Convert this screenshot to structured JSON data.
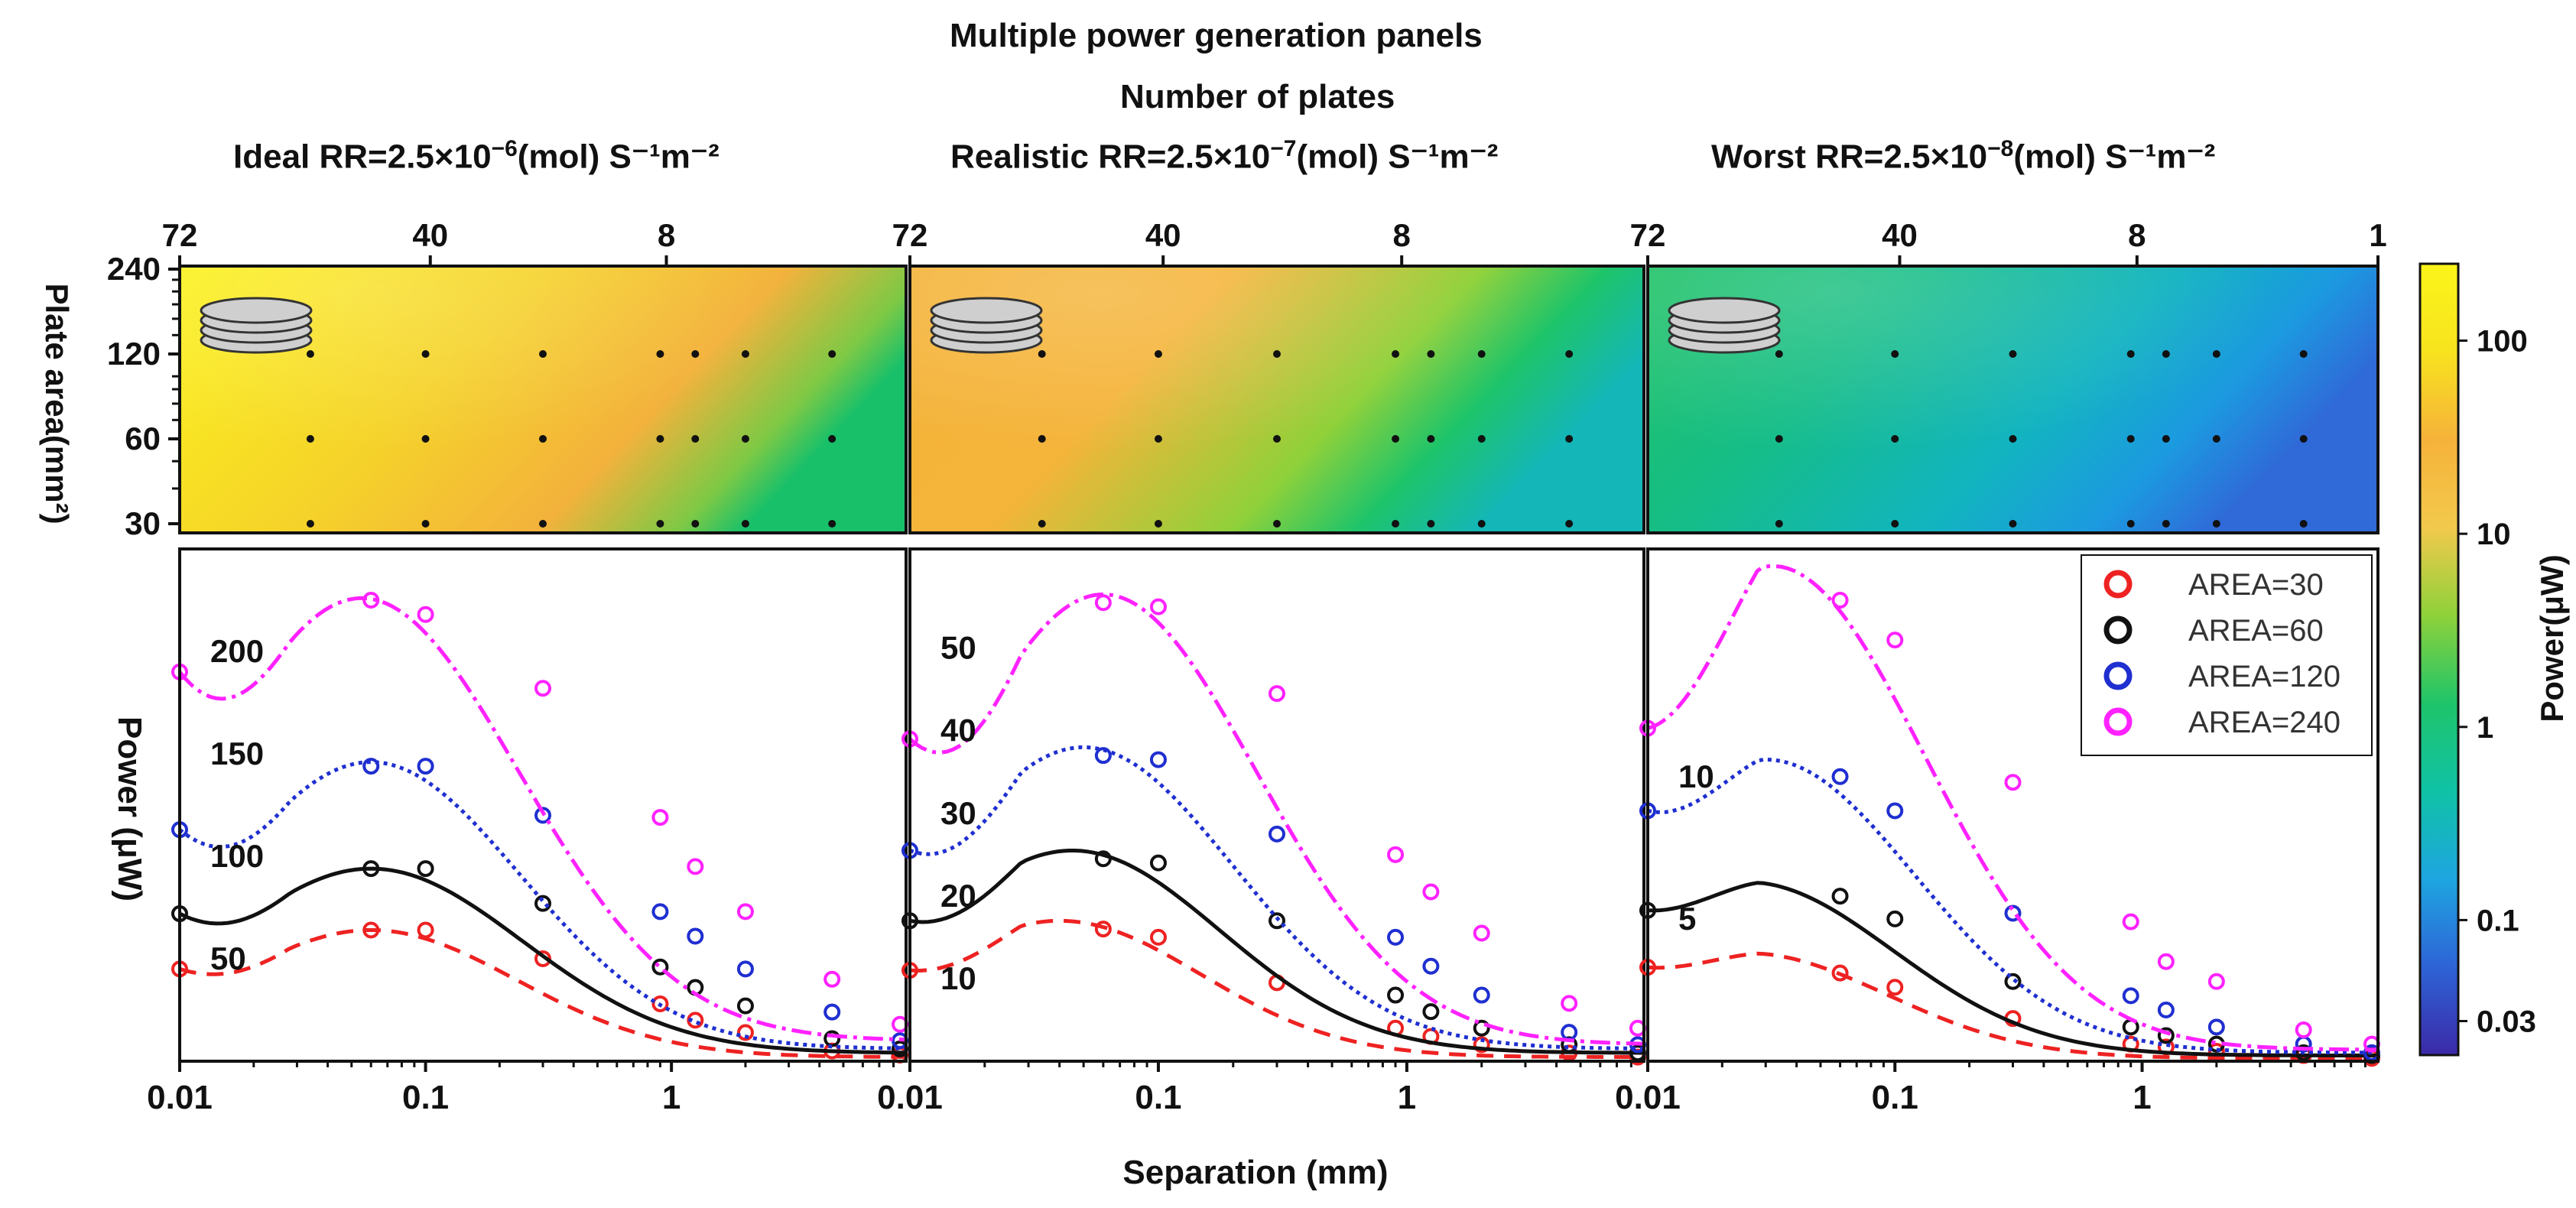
{
  "figure": {
    "title": "Multiple power generation panels",
    "top_axis_label": "Number of plates",
    "panel_titles": [
      {
        "prefix": "Ideal RR=2.5×10",
        "exponent": "−6",
        "suffix": "(mol) S⁻¹m⁻²"
      },
      {
        "prefix": "Realistic RR=2.5×10",
        "exponent": "−7",
        "suffix": "(mol) S⁻¹m⁻²"
      },
      {
        "prefix": "Worst RR=2.5×10",
        "exponent": "−8",
        "suffix": "(mol) S⁻¹m⁻²"
      }
    ],
    "colorbar": {
      "label": "Power(μW)",
      "scale": "log",
      "range": [
        0.02,
        250
      ],
      "ticks": [
        "100",
        "10",
        "1",
        "0.1",
        "0.03"
      ],
      "tick_values": [
        100,
        10,
        1,
        0.1,
        0.03
      ],
      "colors": [
        "#3b2aa8",
        "#2e63d6",
        "#1ea5e0",
        "#10c2a6",
        "#1ec46a",
        "#8fd13a",
        "#f2c94c",
        "#f6b23a",
        "#f7e31f",
        "#fbf519"
      ]
    }
  },
  "chart_data": [
    {
      "type": "heatmap",
      "name": "Ideal contour",
      "ylabel": "Plate area(mm²)",
      "yticks": [
        "240",
        "120",
        "60",
        "30"
      ],
      "ytick_values": [
        240,
        120,
        60,
        30
      ],
      "top_ticks": [
        "72",
        "40",
        "8"
      ],
      "top_tick_values": [
        72,
        40,
        8
      ],
      "color_stops": [
        [
          0.0,
          "#fcf21c"
        ],
        [
          0.45,
          "#f5d22a"
        ],
        [
          0.75,
          "#f3b23c"
        ],
        [
          0.92,
          "#7dc945"
        ],
        [
          1.0,
          "#18c06a"
        ]
      ],
      "points_area": [
        30,
        60,
        120
      ],
      "points_sep": [
        0.034,
        0.1,
        0.3,
        0.9,
        1.25,
        2.0,
        4.5
      ]
    },
    {
      "type": "heatmap",
      "name": "Realistic contour",
      "ylabel": "",
      "yticks": [],
      "top_ticks": [
        "72",
        "40",
        "8"
      ],
      "top_tick_values": [
        72,
        40,
        8
      ],
      "color_stops": [
        [
          0.0,
          "#f4b338"
        ],
        [
          0.4,
          "#f5b43a"
        ],
        [
          0.7,
          "#8fd13a"
        ],
        [
          0.85,
          "#1ec46a"
        ],
        [
          1.0,
          "#14b6b8"
        ]
      ],
      "points_area": [
        30,
        60,
        120
      ],
      "points_sep": [
        0.034,
        0.1,
        0.3,
        0.9,
        1.25,
        2.0,
        4.5
      ]
    },
    {
      "type": "heatmap",
      "name": "Worst contour",
      "ylabel": "",
      "yticks": [],
      "top_ticks": [
        "72",
        "40",
        "8",
        "1"
      ],
      "top_tick_values": [
        72,
        40,
        8,
        1
      ],
      "color_stops": [
        [
          0.0,
          "#20c266"
        ],
        [
          0.35,
          "#15bd88"
        ],
        [
          0.65,
          "#12b4c0"
        ],
        [
          0.85,
          "#1c9ae0"
        ],
        [
          1.0,
          "#2f6ad8"
        ]
      ],
      "points_area": [
        30,
        60,
        120
      ],
      "points_sep": [
        0.034,
        0.1,
        0.3,
        0.9,
        1.25,
        2.0,
        4.5
      ]
    },
    {
      "type": "line",
      "name": "Ideal",
      "xlabel": "Separation (mm)",
      "ylabel": "Power (μW)",
      "xscale": "log",
      "xlim": [
        0.01,
        9
      ],
      "ylim": [
        0,
        250
      ],
      "yticks": [
        "50",
        "100",
        "150",
        "200"
      ],
      "ytick_values": [
        50,
        100,
        150,
        200
      ],
      "xticks": [
        "0.01",
        "0.1",
        "1"
      ],
      "xtick_values": [
        0.01,
        0.1,
        1
      ],
      "x": [
        0.06,
        0.1,
        0.3,
        0.9,
        1.25,
        2.0,
        4.5,
        8.5
      ],
      "series": [
        {
          "name": "AREA=30",
          "color": "#ee2222",
          "dash": "22,14",
          "peak": 64,
          "peak_x": 0.06,
          "sigma": 1.25,
          "floor": 2,
          "start": 45,
          "markers": [
            64,
            64,
            50,
            28,
            20,
            14,
            5,
            3
          ]
        },
        {
          "name": "AREA=60",
          "color": "#111111",
          "dash": "",
          "peak": 94,
          "peak_x": 0.06,
          "sigma": 1.3,
          "floor": 4,
          "start": 72,
          "markers": [
            94,
            94,
            77,
            46,
            36,
            27,
            11,
            6
          ]
        },
        {
          "name": "AREA=120",
          "color": "#1f2fd0",
          "dash": "5,6",
          "peak": 146,
          "peak_x": 0.06,
          "sigma": 1.28,
          "floor": 6,
          "start": 113,
          "markers": [
            144,
            144,
            120,
            73,
            61,
            45,
            24,
            10
          ]
        },
        {
          "name": "AREA=240",
          "color": "#ff22ff",
          "dash": "26,8,5,8",
          "peak": 226,
          "peak_x": 0.055,
          "sigma": 1.35,
          "floor": 10,
          "start": 190,
          "markers": [
            225,
            218,
            182,
            119,
            95,
            73,
            40,
            18
          ]
        }
      ]
    },
    {
      "type": "line",
      "name": "Realistic",
      "xlabel": "Separation (mm)",
      "ylabel": "",
      "xscale": "log",
      "xlim": [
        0.01,
        9
      ],
      "ylim": [
        0,
        62
      ],
      "yticks": [
        "10",
        "20",
        "30",
        "40",
        "50"
      ],
      "ytick_values": [
        10,
        20,
        30,
        40,
        50
      ],
      "xticks": [
        "0.01",
        "0.1",
        "1"
      ],
      "xtick_values": [
        0.01,
        0.1,
        1
      ],
      "x": [
        0.06,
        0.1,
        0.3,
        0.9,
        1.25,
        2.0,
        4.5,
        8.5
      ],
      "series": [
        {
          "name": "AREA=30",
          "color": "#ee2222",
          "dash": "22,14",
          "peak": 17,
          "peak_x": 0.04,
          "sigma": 1.2,
          "floor": 0.5,
          "start": 11,
          "markers": [
            16,
            15,
            9.5,
            4,
            3,
            2,
            1,
            0.5
          ]
        },
        {
          "name": "AREA=60",
          "color": "#111111",
          "dash": "",
          "peak": 25.5,
          "peak_x": 0.045,
          "sigma": 1.25,
          "floor": 1,
          "start": 17,
          "markers": [
            24.5,
            24,
            17,
            8,
            6,
            4,
            2,
            1
          ]
        },
        {
          "name": "AREA=120",
          "color": "#1f2fd0",
          "dash": "5,6",
          "peak": 38,
          "peak_x": 0.05,
          "sigma": 1.27,
          "floor": 1.5,
          "start": 25.5,
          "markers": [
            37,
            36.5,
            27.5,
            15,
            11.5,
            8,
            3.5,
            2
          ]
        },
        {
          "name": "AREA=240",
          "color": "#ff22ff",
          "dash": "26,8,5,8",
          "peak": 56.5,
          "peak_x": 0.06,
          "sigma": 1.3,
          "floor": 2,
          "start": 39,
          "markers": [
            55.5,
            55,
            44.5,
            25,
            20.5,
            15.5,
            7,
            4
          ]
        }
      ]
    },
    {
      "type": "line",
      "name": "Worst",
      "xlabel": "Separation (mm)",
      "ylabel": "",
      "xscale": "log",
      "xlim": [
        0.01,
        9
      ],
      "ylim": [
        0,
        18
      ],
      "yticks": [
        "5",
        "10"
      ],
      "ytick_values": [
        5,
        10
      ],
      "xticks": [
        "0.01",
        "0.1",
        "1"
      ],
      "xtick_values": [
        0.01,
        0.1,
        1
      ],
      "x": [
        0.06,
        0.1,
        0.3,
        0.9,
        1.25,
        2.0,
        4.5,
        8.5
      ],
      "series": [
        {
          "name": "AREA=30",
          "color": "#ee2222",
          "dash": "22,14",
          "peak": 3.8,
          "peak_x": 0.025,
          "sigma": 1.2,
          "floor": 0.1,
          "start": 3.3,
          "markers": [
            3.1,
            2.6,
            1.5,
            0.6,
            0.5,
            0.35,
            0.2,
            0.1
          ]
        },
        {
          "name": "AREA=60",
          "color": "#111111",
          "dash": "",
          "peak": 6.3,
          "peak_x": 0.025,
          "sigma": 1.25,
          "floor": 0.2,
          "start": 5.3,
          "markers": [
            5.8,
            5.0,
            2.8,
            1.2,
            0.9,
            0.6,
            0.3,
            0.2
          ]
        },
        {
          "name": "AREA=120",
          "color": "#1f2fd0",
          "dash": "5,6",
          "peak": 10.6,
          "peak_x": 0.03,
          "sigma": 1.27,
          "floor": 0.3,
          "start": 8.8,
          "markers": [
            10,
            8.8,
            5.2,
            2.3,
            1.8,
            1.2,
            0.6,
            0.3
          ]
        },
        {
          "name": "AREA=240",
          "color": "#ff22ff",
          "dash": "26,8,5,8",
          "peak": 17.4,
          "peak_x": 0.032,
          "sigma": 1.3,
          "floor": 0.4,
          "start": 11.7,
          "markers": [
            16.2,
            14.8,
            9.8,
            4.9,
            3.5,
            2.8,
            1.1,
            0.6
          ]
        }
      ]
    }
  ],
  "legend": {
    "placement": "top-right of third line panel",
    "entries": [
      {
        "label": "AREA=30",
        "color": "#ee2222"
      },
      {
        "label": "AREA=60",
        "color": "#111111"
      },
      {
        "label": "AREA=120",
        "color": "#1f2fd0"
      },
      {
        "label": "AREA=240",
        "color": "#ff22ff"
      }
    ]
  }
}
